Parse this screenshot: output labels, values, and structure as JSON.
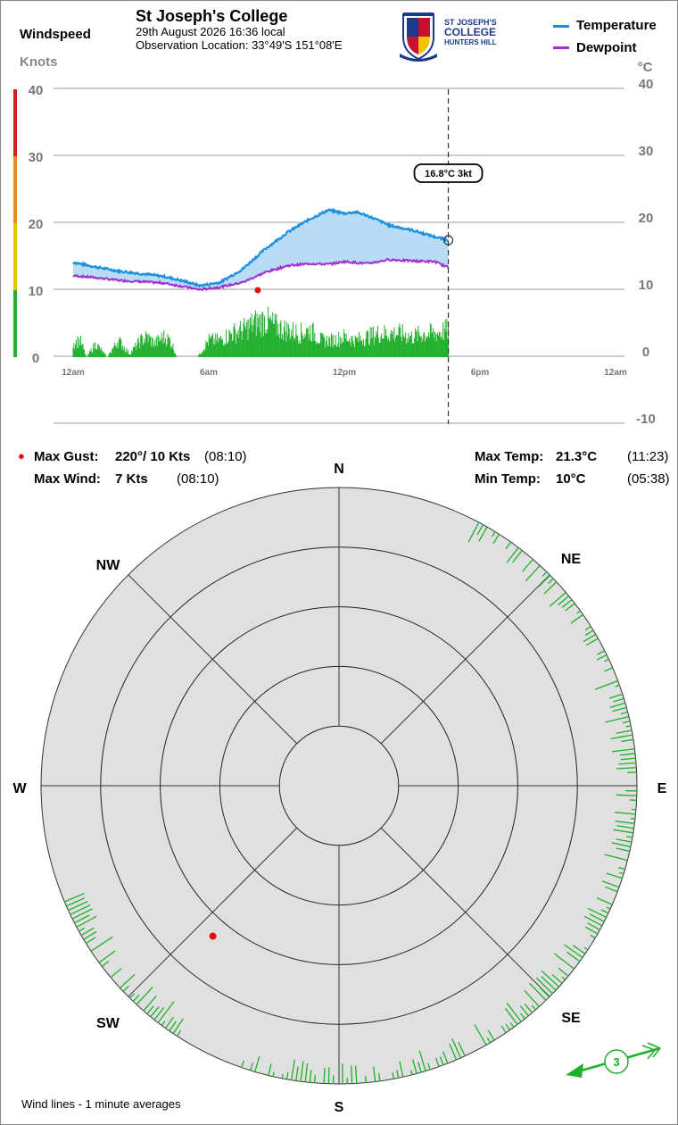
{
  "header": {
    "station": "St Joseph's College",
    "datetime": "29th August 2026  16:36 local",
    "location": "Observation Location: 33°49'S 151°08'E",
    "logo": {
      "line1": "ST JOSEPH'S",
      "line2": "COLLEGE",
      "line3": "HUNTERS HILL"
    }
  },
  "windspeed_panel": {
    "title": "Windspeed",
    "unit": "Knots"
  },
  "legend": {
    "temperature": "Temperature",
    "dewpoint": "Dewpoint",
    "temp_unit": "°C"
  },
  "colors": {
    "temperature": "#1a8fe0",
    "dewpoint": "#a030d0",
    "fill": "#b8dcf5",
    "wind": "#1fb02a",
    "gust": "#e01010",
    "polar_fill": "#e0e0e0"
  },
  "tooltip": "16.8°C  3kt",
  "stats": {
    "max_gust_label": "Max Gust:",
    "max_gust_value": "220°/  10 Kts",
    "max_gust_time": "(08:10)",
    "max_wind_label": "Max Wind:",
    "max_wind_value": "7 Kts",
    "max_wind_time": "(08:10)",
    "max_temp_label": "Max Temp:",
    "max_temp_value": "21.3°C",
    "max_temp_time": "(11:23)",
    "min_temp_label": "Min Temp:",
    "min_temp_value": "10°C",
    "min_temp_time": "(05:38)"
  },
  "compass": {
    "n": "N",
    "ne": "NE",
    "e": "E",
    "se": "SE",
    "s": "S",
    "sw": "SW",
    "w": "W",
    "nw": "NW"
  },
  "current_wind": {
    "speed": "3",
    "direction_deg": 250
  },
  "footnote": "Wind lines - 1 minute averages",
  "chart_data": {
    "type": "line",
    "x_ticks": [
      "12am",
      "6am",
      "12pm",
      "6pm",
      "12am"
    ],
    "x_range_hours": [
      0,
      24
    ],
    "current_time_hours": 16.6,
    "wind_axis": {
      "label": "Knots",
      "ticks": [
        0,
        10,
        20,
        30,
        40
      ],
      "range": [
        0,
        40
      ]
    },
    "temp_axis": {
      "label": "°C",
      "ticks": [
        -10,
        0,
        10,
        20,
        30,
        40
      ],
      "range": [
        -10,
        40
      ]
    },
    "grid": true,
    "series": [
      {
        "name": "Temperature",
        "x": [
          0,
          1,
          2,
          3,
          4,
          5,
          5.6,
          6.5,
          7.5,
          8.5,
          9.5,
          10.5,
          11.3,
          12,
          12.5,
          13,
          14,
          15,
          16,
          16.6
        ],
        "values": [
          13.5,
          12.8,
          12.2,
          11.8,
          11.4,
          10.6,
          10.0,
          10.5,
          12.5,
          15.5,
          18.0,
          20.0,
          21.3,
          20.8,
          21.0,
          20.5,
          19.0,
          18.3,
          17.3,
          16.8
        ]
      },
      {
        "name": "Dewpoint",
        "x": [
          0,
          1,
          2,
          3,
          4,
          5,
          5.6,
          6.5,
          7.5,
          8.5,
          9.5,
          10.5,
          11.3,
          12,
          13,
          14,
          15,
          16,
          16.6
        ],
        "values": [
          11.5,
          11.2,
          10.8,
          10.6,
          10.4,
          9.8,
          9.4,
          9.8,
          10.5,
          12.0,
          13.0,
          13.3,
          13.2,
          13.6,
          13.3,
          13.9,
          13.7,
          13.6,
          12.7
        ]
      }
    ],
    "wind_speed": {
      "x": [
        0,
        0.3,
        0.6,
        1,
        1.5,
        2,
        2.5,
        3,
        3.3,
        3.6,
        4,
        4.3,
        4.6,
        5,
        5.5,
        6,
        6.5,
        7,
        7.5,
        8,
        8.5,
        9,
        9.5,
        10,
        10.5,
        11,
        11.5,
        12,
        12.5,
        13,
        13.5,
        14,
        14.5,
        15,
        15.5,
        16,
        16.5
      ],
      "values": [
        2,
        2.5,
        0,
        2,
        0,
        2.5,
        0.5,
        2.5,
        3,
        2,
        3,
        2.5,
        0,
        0,
        0,
        2.5,
        2.5,
        3.5,
        4,
        5,
        5.5,
        4.5,
        4,
        3.5,
        4,
        2.5,
        2.5,
        3,
        2.5,
        3,
        3.5,
        3.5,
        3.5,
        3,
        3.5,
        3.5,
        4
      ]
    },
    "max_gust_point": {
      "x": 8.17,
      "value": 10
    },
    "wind_direction_minutes": {
      "clusters": [
        {
          "from_deg": 28,
          "to_deg": 152,
          "max_len": 24
        },
        {
          "from_deg": 155,
          "to_deg": 200,
          "max_len": 20
        },
        {
          "from_deg": 212,
          "to_deg": 248,
          "max_len": 26
        }
      ]
    }
  }
}
